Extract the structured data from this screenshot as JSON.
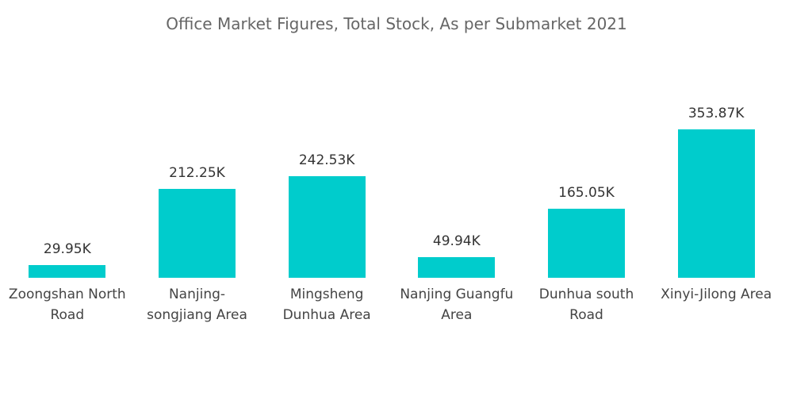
{
  "chart_data": {
    "type": "bar",
    "title": "Office Market Figures, Total Stock, As per Submarket 2021",
    "categories": [
      "Zoongshan North Road",
      "Nanjing-songjiang Area",
      "Mingsheng Dunhua Area",
      "Nanjing Guangfu Area",
      "Dunhua south Road",
      "Xinyi-Jilong Area"
    ],
    "values": [
      29.95,
      212.25,
      242.53,
      49.94,
      165.05,
      353.87
    ],
    "value_labels": [
      "29.95K",
      "212.25K",
      "242.53K",
      "49.94K",
      "165.05K",
      "353.87K"
    ],
    "color": "#00cccc"
  }
}
